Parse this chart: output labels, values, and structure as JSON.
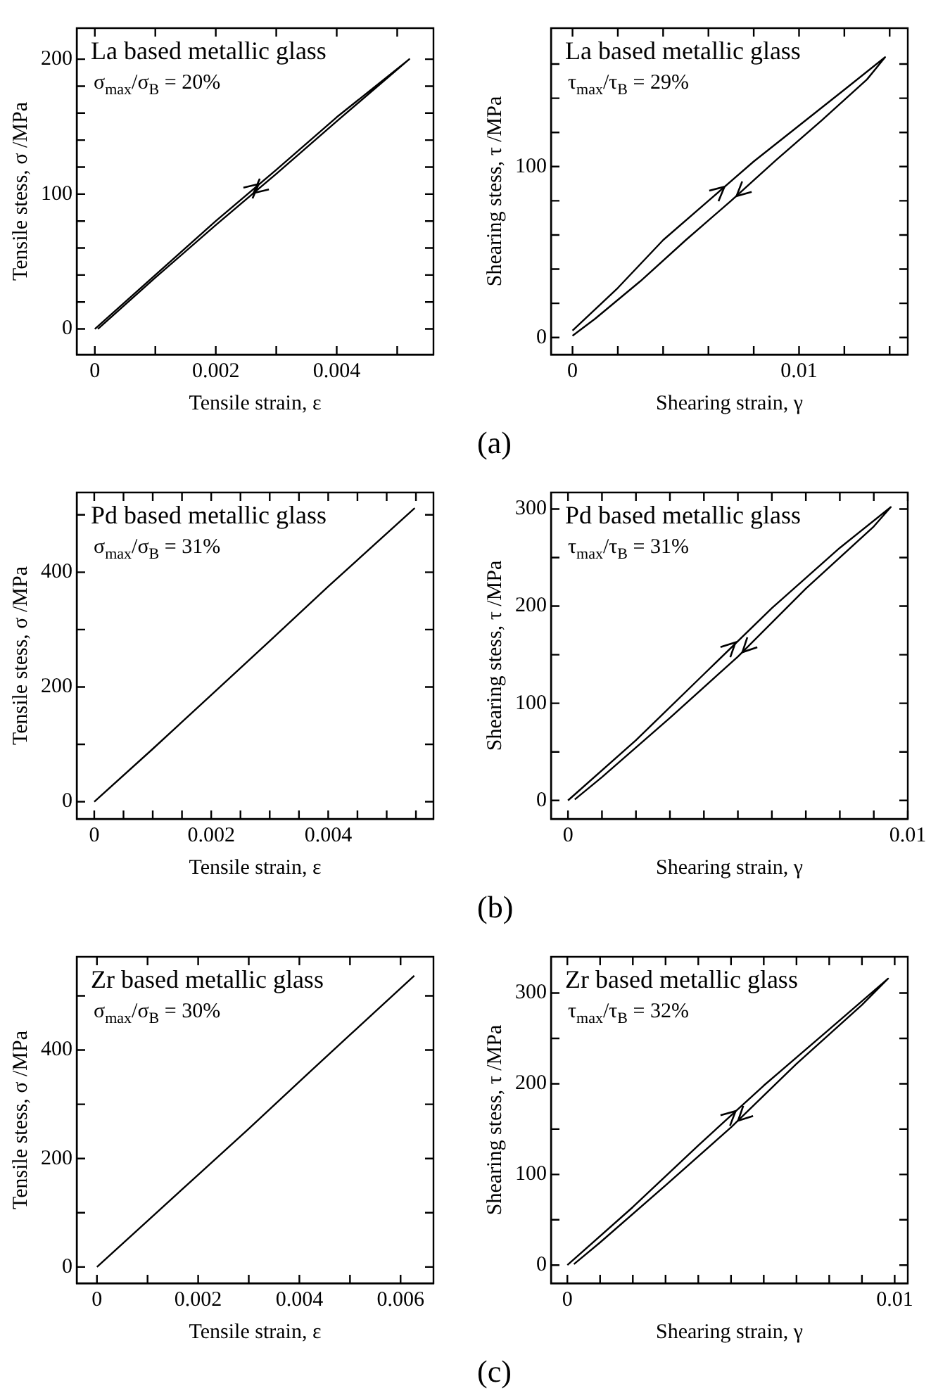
{
  "chart_data": [
    {
      "type": "line",
      "title": "La based metallic glass",
      "subtitle": "σ$_{max}$/σ$_{B}$ = 20%",
      "xlabel": "Tensile strain, ε",
      "ylabel": "Tensile stess, σ /MPa",
      "xlim": [
        -0.0003,
        0.0056
      ],
      "ylim": [
        -19,
        223
      ],
      "xticks": [
        0,
        {
          "value": 0.001,
          "label": null
        },
        0.002,
        {
          "value": 0.003,
          "label": null
        },
        0.004,
        {
          "value": 0.005,
          "label": null
        }
      ],
      "yticks": [
        0,
        {
          "value": 20,
          "label": null
        },
        {
          "value": 40,
          "label": null
        },
        {
          "value": 60,
          "label": null
        },
        {
          "value": 80,
          "label": null
        },
        100,
        {
          "value": 120,
          "label": null
        },
        {
          "value": 140,
          "label": null
        },
        {
          "value": 160,
          "label": null
        },
        {
          "value": 180,
          "label": null
        },
        200
      ],
      "grid": false,
      "marker": "none",
      "line_style": "solid",
      "series": [
        {
          "color": "#000000",
          "x": [
            0,
            0.001,
            0.002,
            0.003,
            0.004,
            0.0052,
            0.004,
            0.003,
            0.002,
            0.001,
            5e-05
          ],
          "values": [
            0,
            40,
            80,
            118,
            157,
            200,
            154,
            115,
            77,
            38,
            0
          ]
        }
      ]
    },
    {
      "type": "line",
      "title": "La based metallic glass",
      "subtitle": "τ$_{max}$/τ$_{B}$ = 29%",
      "xlabel": "Shearing strain, γ",
      "ylabel": "Shearing stess, τ /MPa",
      "xlim": [
        -0.00095,
        0.0148
      ],
      "ylim": [
        -10,
        181
      ],
      "xticks": [
        0,
        {
          "value": 0.002,
          "label": null
        },
        {
          "value": 0.004,
          "label": null
        },
        {
          "value": 0.006,
          "label": null
        },
        {
          "value": 0.008,
          "label": null
        },
        0.01,
        {
          "value": 0.012,
          "label": null
        },
        {
          "value": 0.014,
          "label": null
        }
      ],
      "yticks": [
        0,
        {
          "value": 20,
          "label": null
        },
        {
          "value": 40,
          "label": null
        },
        {
          "value": 60,
          "label": null
        },
        {
          "value": 80,
          "label": null
        },
        100,
        {
          "value": 120,
          "label": null
        },
        {
          "value": 140,
          "label": null
        },
        {
          "value": 160,
          "label": null
        }
      ],
      "grid": false,
      "marker": "none",
      "line_style": "solid",
      "annotations": [
        "(a)"
      ],
      "series": [
        {
          "color": "#000000",
          "x": [
            0,
            0.002,
            0.004,
            0.006,
            0.008,
            0.01,
            0.012,
            0.0138,
            0.013,
            0.011,
            0.009,
            0.007,
            0.005,
            0.003,
            0.001,
            0
          ],
          "values": [
            4,
            29,
            57,
            80,
            103,
            124,
            145,
            164,
            151,
            127,
            104,
            80,
            57,
            33,
            11,
            1
          ]
        }
      ]
    },
    {
      "type": "line",
      "title": "Pd based metallic glass",
      "subtitle": "σ$_{max}$/σ$_{B}$ = 31%",
      "xlabel": "Tensile strain, ε",
      "ylabel": "Tensile stess, σ /MPa",
      "xlim": [
        -0.0003,
        0.0058
      ],
      "ylim": [
        -30,
        539
      ],
      "xticks": [
        0,
        {
          "value": 0.0005,
          "label": null
        },
        {
          "value": 0.001,
          "label": null
        },
        {
          "value": 0.0015,
          "label": null
        },
        0.002,
        {
          "value": 0.0025,
          "label": null
        },
        {
          "value": 0.003,
          "label": null
        },
        {
          "value": 0.0035,
          "label": null
        },
        0.004,
        {
          "value": 0.0045,
          "label": null
        },
        {
          "value": 0.005,
          "label": null
        },
        {
          "value": 0.0055,
          "label": null
        }
      ],
      "yticks": [
        0,
        {
          "value": 100,
          "label": null
        },
        200,
        {
          "value": 300,
          "label": null
        },
        400,
        {
          "value": 500,
          "label": null
        }
      ],
      "grid": false,
      "marker": "none",
      "line_style": "solid",
      "series": [
        {
          "color": "#000000",
          "x": [
            0,
            0.001,
            0.002,
            0.003,
            0.004,
            0.00548
          ],
          "values": [
            0,
            92,
            186,
            280,
            375,
            512
          ]
        }
      ]
    },
    {
      "type": "line",
      "title": "Pd based metallic glass",
      "subtitle": "τ$_{max}$/τ$_{B}$ = 31%",
      "xlabel": "Shearing strain, γ",
      "ylabel": "Shearing stess, τ /MPa",
      "xlim": [
        -0.0005,
        0.01
      ],
      "ylim": [
        -19,
        317
      ],
      "xticks": [
        0,
        {
          "value": 0.001,
          "label": null
        },
        {
          "value": 0.002,
          "label": null
        },
        {
          "value": 0.003,
          "label": null
        },
        {
          "value": 0.004,
          "label": null
        },
        {
          "value": 0.005,
          "label": null
        },
        {
          "value": 0.006,
          "label": null
        },
        {
          "value": 0.007,
          "label": null
        },
        {
          "value": 0.008,
          "label": null
        },
        {
          "value": 0.009,
          "label": null
        },
        0.01
      ],
      "yticks": [
        0,
        {
          "value": 50,
          "label": null
        },
        100,
        {
          "value": 150,
          "label": null
        },
        200,
        {
          "value": 250,
          "label": null
        },
        300
      ],
      "grid": false,
      "marker": "none",
      "line_style": "solid",
      "annotations": [
        "(b)"
      ],
      "series": [
        {
          "color": "#000000",
          "x": [
            0,
            0.002,
            0.004,
            0.006,
            0.008,
            0.0095,
            0.009,
            0.007,
            0.005,
            0.003,
            0.001,
            0.0002
          ],
          "values": [
            0,
            62,
            130,
            198,
            260,
            302,
            282,
            218,
            148,
            85,
            24,
            1
          ]
        }
      ]
    },
    {
      "type": "line",
      "title": "Zr based metallic glass",
      "subtitle": "σ$_{max}$/σ$_{B}$ = 30%",
      "xlabel": "Tensile strain, ε",
      "ylabel": "Tensile stess, σ /MPa",
      "xlim": [
        -0.0004,
        0.00665
      ],
      "ylim": [
        -30,
        572
      ],
      "xticks": [
        0,
        {
          "value": 0.001,
          "label": null
        },
        0.002,
        {
          "value": 0.003,
          "label": null
        },
        0.004,
        {
          "value": 0.005,
          "label": null
        },
        0.006
      ],
      "yticks": [
        0,
        {
          "value": 100,
          "label": null
        },
        200,
        {
          "value": 300,
          "label": null
        },
        400,
        {
          "value": 500,
          "label": null
        }
      ],
      "grid": false,
      "marker": "none",
      "line_style": "solid",
      "series": [
        {
          "color": "#000000",
          "x": [
            0,
            0.001,
            0.002,
            0.003,
            0.004,
            0.005,
            0.00627
          ],
          "values": [
            0,
            85,
            170,
            255,
            342,
            428,
            537
          ]
        }
      ]
    },
    {
      "type": "line",
      "title": "Zr based metallic glass",
      "subtitle": "τ$_{max}$/τ$_{B}$ = 32%",
      "xlabel": "Shearing strain, γ",
      "ylabel": "Shearing stess, τ /MPa",
      "xlim": [
        -0.0005,
        0.0104
      ],
      "ylim": [
        -20,
        340
      ],
      "xticks": [
        0,
        {
          "value": 0.001,
          "label": null
        },
        {
          "value": 0.002,
          "label": null
        },
        {
          "value": 0.003,
          "label": null
        },
        {
          "value": 0.004,
          "label": null
        },
        {
          "value": 0.005,
          "label": null
        },
        {
          "value": 0.006,
          "label": null
        },
        {
          "value": 0.007,
          "label": null
        },
        {
          "value": 0.008,
          "label": null
        },
        {
          "value": 0.009,
          "label": null
        },
        0.01
      ],
      "yticks": [
        0,
        {
          "value": 50,
          "label": null
        },
        100,
        {
          "value": 150,
          "label": null
        },
        200,
        {
          "value": 250,
          "label": null
        },
        300
      ],
      "grid": false,
      "marker": "none",
      "line_style": "solid",
      "annotations": [
        "(c)"
      ],
      "series": [
        {
          "color": "#000000",
          "x": [
            0,
            0.002,
            0.004,
            0.006,
            0.008,
            0.0098,
            0.009,
            0.007,
            0.005,
            0.003,
            0.001,
            0.0002
          ],
          "values": [
            0,
            64,
            132,
            198,
            260,
            316,
            287,
            222,
            152,
            88,
            25,
            1
          ]
        }
      ]
    }
  ]
}
